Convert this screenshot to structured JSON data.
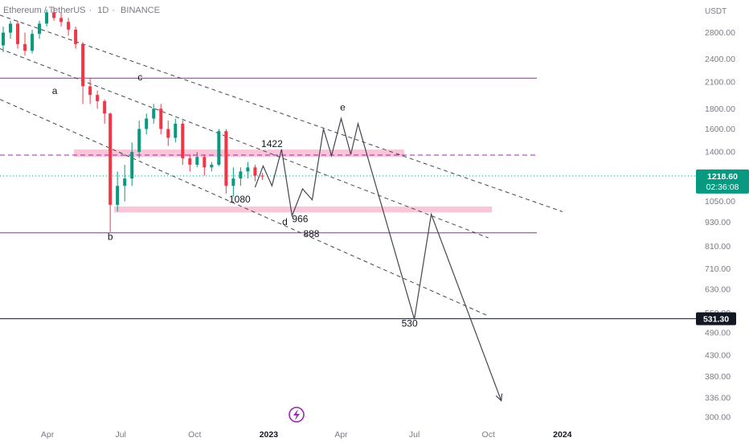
{
  "header": {
    "symbol": "Ethereum / TetherUS",
    "interval": "1D",
    "exchange": "BINANCE"
  },
  "chart_data": {
    "type": "candlestick-with-drawings",
    "y_scale": "log",
    "y_unit": "USDT",
    "ylim": [
      296,
      3200
    ],
    "y_ticks": [
      2800,
      2400,
      2100,
      1800,
      1600,
      1400,
      1050,
      930,
      810,
      710,
      630,
      550,
      490,
      430,
      380,
      336,
      300
    ],
    "y_tick_labels": [
      "2800.00",
      "2400.00",
      "2100.00",
      "1800.00",
      "1600.00",
      "1400.00",
      "1050.00",
      "930.00",
      "810.00",
      "710.00",
      "630.00",
      "550.00",
      "490.00",
      "430.00",
      "380.00",
      "336.00",
      "300.00"
    ],
    "x_tick_labels": [
      "Apr",
      "Jul",
      "Oct",
      "2023",
      "Apr",
      "Jul",
      "Oct",
      "2024"
    ],
    "xlim": [
      "2022-02-01",
      "2024-05-15"
    ],
    "x_ticks": [
      "2022-04-01",
      "2022-07-01",
      "2022-10-01",
      "2023-01-01",
      "2023-04-01",
      "2023-07-01",
      "2023-10-01",
      "2024-01-01"
    ],
    "last_price": {
      "value": 1218.6,
      "label": "1218.60",
      "countdown": "02:36:08",
      "color": "#089981"
    },
    "marked_level": {
      "value": 531.3,
      "label": "531.30"
    },
    "candles": [
      [
        "2022-02-05",
        2600,
        2900,
        2500,
        2800
      ],
      [
        "2022-02-14",
        2800,
        3000,
        2700,
        2950
      ],
      [
        "2022-02-23",
        2950,
        3000,
        2550,
        2620
      ],
      [
        "2022-03-04",
        2620,
        2800,
        2450,
        2520
      ],
      [
        "2022-03-13",
        2520,
        2850,
        2480,
        2780
      ],
      [
        "2022-03-22",
        2780,
        3000,
        2700,
        2950
      ],
      [
        "2022-03-31",
        2950,
        3200,
        2900,
        3150
      ],
      [
        "2022-04-09",
        3150,
        3250,
        3000,
        3050
      ],
      [
        "2022-04-18",
        3050,
        3150,
        2900,
        2980
      ],
      [
        "2022-04-27",
        2980,
        3050,
        2750,
        2850
      ],
      [
        "2022-05-06",
        2850,
        2900,
        2550,
        2620
      ],
      [
        "2022-05-15",
        2620,
        2650,
        1850,
        2050
      ],
      [
        "2022-05-24",
        2050,
        2150,
        1850,
        1950
      ],
      [
        "2022-06-02",
        1950,
        2000,
        1800,
        1880
      ],
      [
        "2022-06-11",
        1880,
        1900,
        1650,
        1750
      ],
      [
        "2022-06-18",
        1750,
        1760,
        880,
        1030
      ],
      [
        "2022-06-27",
        1030,
        1250,
        990,
        1150
      ],
      [
        "2022-07-06",
        1150,
        1300,
        1050,
        1200
      ],
      [
        "2022-07-15",
        1200,
        1480,
        1150,
        1400
      ],
      [
        "2022-07-24",
        1400,
        1680,
        1350,
        1600
      ],
      [
        "2022-08-02",
        1600,
        1750,
        1550,
        1700
      ],
      [
        "2022-08-11",
        1700,
        1850,
        1650,
        1800
      ],
      [
        "2022-08-20",
        1800,
        1850,
        1550,
        1600
      ],
      [
        "2022-08-29",
        1600,
        1680,
        1450,
        1520
      ],
      [
        "2022-09-07",
        1520,
        1700,
        1480,
        1650
      ],
      [
        "2022-09-16",
        1650,
        1680,
        1300,
        1350
      ],
      [
        "2022-09-25",
        1350,
        1380,
        1250,
        1300
      ],
      [
        "2022-10-04",
        1300,
        1400,
        1280,
        1360
      ],
      [
        "2022-10-13",
        1360,
        1380,
        1220,
        1280
      ],
      [
        "2022-10-22",
        1280,
        1320,
        1250,
        1300
      ],
      [
        "2022-10-31",
        1300,
        1600,
        1290,
        1580
      ],
      [
        "2022-11-09",
        1580,
        1600,
        1100,
        1150
      ],
      [
        "2022-11-18",
        1150,
        1280,
        1080,
        1200
      ],
      [
        "2022-11-27",
        1200,
        1280,
        1150,
        1250
      ],
      [
        "2022-12-06",
        1250,
        1320,
        1200,
        1280
      ],
      [
        "2022-12-15",
        1280,
        1300,
        1180,
        1220
      ],
      [
        "2022-12-24",
        1220,
        1240,
        1190,
        1215
      ]
    ],
    "horizontal_lines": [
      {
        "value": 2150,
        "style": "solid",
        "color": "#9c27b0"
      },
      {
        "value": 1375,
        "style": "dashed",
        "color": "#9c27b0"
      },
      {
        "value": 875,
        "style": "solid",
        "color": "#9c27b0"
      }
    ],
    "zones": [
      {
        "from": 1360,
        "to": 1420,
        "color": "#f8bbd0"
      },
      {
        "from": 985,
        "to": 1020,
        "color": "#f8bbd0"
      }
    ],
    "trend_channel_lines": [
      {
        "points": [
          [
            "2022-02-01",
            3100
          ],
          [
            "2024-01-01",
            990
          ]
        ]
      },
      {
        "points": [
          [
            "2022-02-01",
            2550
          ],
          [
            "2023-10-01",
            850
          ]
        ]
      },
      {
        "points": [
          [
            "2022-02-01",
            1900
          ],
          [
            "2023-10-01",
            540
          ]
        ]
      }
    ],
    "projected_path": [
      [
        "2022-12-15",
        1140
      ],
      [
        "2022-12-25",
        1290
      ],
      [
        "2023-01-05",
        1150
      ],
      [
        "2023-01-17",
        1422
      ],
      [
        "2023-01-30",
        966
      ],
      [
        "2023-02-12",
        1130
      ],
      [
        "2023-02-24",
        1060
      ],
      [
        "2023-03-10",
        1600
      ],
      [
        "2023-03-20",
        1370
      ],
      [
        "2023-04-01",
        1700
      ],
      [
        "2023-04-13",
        1380
      ],
      [
        "2023-04-22",
        1650
      ],
      [
        "2023-07-01",
        530
      ],
      [
        "2023-07-22",
        975
      ],
      [
        "2023-10-17",
        330
      ]
    ],
    "wave_labels": [
      {
        "text": "a",
        "x": "2022-04-10",
        "y": 1960
      },
      {
        "text": "b",
        "x": "2022-06-18",
        "y": 840
      },
      {
        "text": "c",
        "x": "2022-07-25",
        "y": 2120
      },
      {
        "text": "d",
        "x": "2023-01-21",
        "y": 915
      },
      {
        "text": "e",
        "x": "2023-04-03",
        "y": 1780
      }
    ],
    "price_labels": [
      {
        "text": "1422",
        "x": "2023-01-05",
        "y": 1440
      },
      {
        "text": "1080",
        "x": "2022-11-26",
        "y": 1045
      },
      {
        "text": "966",
        "x": "2023-02-09",
        "y": 930
      },
      {
        "text": "888",
        "x": "2023-02-23",
        "y": 855
      },
      {
        "text": "530",
        "x": "2023-06-25",
        "y": 507
      }
    ],
    "watermark_icon": "lightning-icon"
  }
}
